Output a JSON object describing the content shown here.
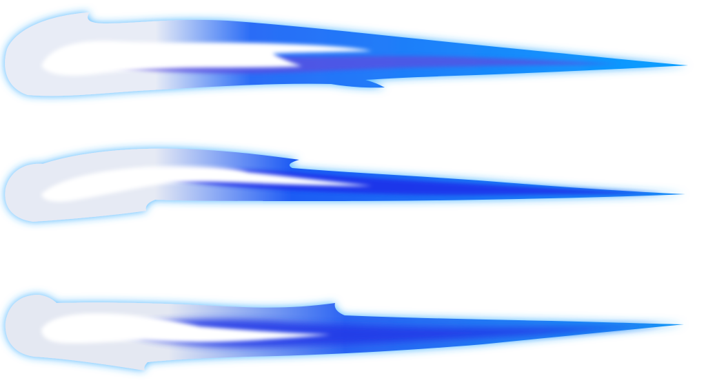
{
  "scene": {
    "background": "#ffffff",
    "glow_color": "#2aa8ff",
    "streaks": [
      {
        "name": "top-comet-streak",
        "colors": {
          "head": "#e8ecf6",
          "mid": "#2a6cf6",
          "tail": "#0aa0ff",
          "core": "#ffffff",
          "inner": "#5a4ee0"
        }
      },
      {
        "name": "middle-comet-streak",
        "colors": {
          "head": "#e6eaf4",
          "mid": "#1f5cf4",
          "tail": "#1a8ef8",
          "core": "#ffffff",
          "inner": "#1a2ce8"
        }
      },
      {
        "name": "bottom-comet-streak",
        "colors": {
          "head": "#e4e8f2",
          "mid": "#2b64f2",
          "tail": "#1896f6",
          "core": "#ffffff",
          "inner": "#2238e6"
        }
      }
    ]
  }
}
